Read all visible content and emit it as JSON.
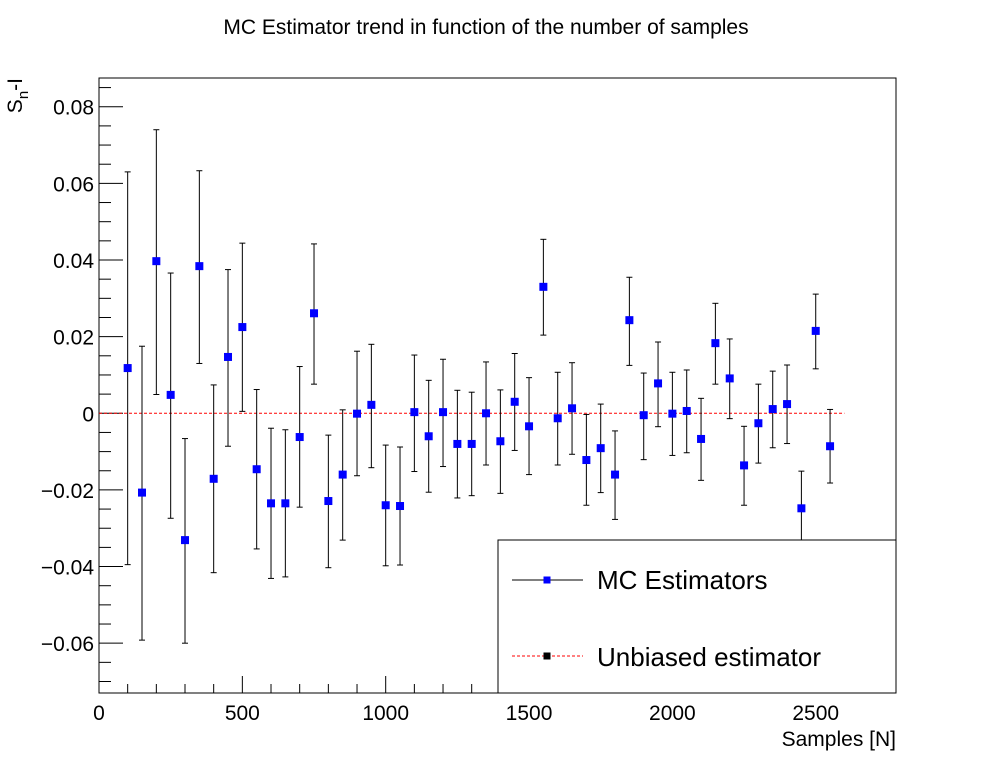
{
  "chart_data": {
    "type": "scatter",
    "title": "MC Estimator trend in function of the number of samples",
    "xlabel": "Samples [N]",
    "ylabel_main": "S",
    "ylabel_sub": "n",
    "ylabel_suffix": "-I",
    "xlim": [
      0,
      2780
    ],
    "ylim": [
      -0.073,
      0.0875
    ],
    "x_ticks": [
      0,
      500,
      1000,
      1500,
      2000,
      2500
    ],
    "x_tick_labels": [
      "0",
      "500",
      "1000",
      "1500",
      "2000",
      "2500"
    ],
    "y_ticks": [
      -0.06,
      -0.04,
      -0.02,
      0,
      0.02,
      0.04,
      0.06,
      0.08
    ],
    "y_tick_labels": [
      "−0.06",
      "−0.04",
      "−0.02",
      "0",
      "0.02",
      "0.04",
      "0.06",
      "0.08"
    ],
    "legend_position": "bottom-right",
    "series": [
      {
        "name": "MC Estimators",
        "color": "#0000ff",
        "x": [
          100,
          150,
          200,
          250,
          300,
          350,
          400,
          450,
          500,
          550,
          600,
          650,
          700,
          750,
          800,
          850,
          900,
          950,
          1000,
          1050,
          1100,
          1150,
          1200,
          1250,
          1300,
          1350,
          1400,
          1450,
          1500,
          1550,
          1600,
          1650,
          1700,
          1750,
          1800,
          1850,
          1900,
          1950,
          2000,
          2050,
          2100,
          2150,
          2200,
          2250,
          2300,
          2350,
          2400,
          2450,
          2500,
          2550
        ],
        "y": [
          0.0118,
          -0.0207,
          0.0397,
          0.0048,
          -0.0331,
          0.0384,
          -0.0171,
          0.0147,
          0.0225,
          -0.0146,
          -0.0235,
          -0.0235,
          -0.0062,
          0.0261,
          -0.0229,
          -0.016,
          -0.0001,
          0.0022,
          -0.024,
          -0.0242,
          0.0003,
          -0.006,
          0.0003,
          -0.008,
          -0.008,
          0.0,
          -0.0073,
          0.003,
          -0.0034,
          0.033,
          -0.0013,
          0.0013,
          -0.0122,
          -0.0091,
          -0.016,
          0.0243,
          -0.0005,
          0.0078,
          -0.0001,
          0.0006,
          -0.0067,
          0.0183,
          0.0091,
          -0.0136,
          -0.0026,
          0.0011,
          0.0024,
          -0.0248,
          0.0215,
          -0.0086
        ],
        "yerr_low": [
          0.0513,
          0.0385,
          0.0348,
          0.0322,
          0.0269,
          0.0254,
          0.0245,
          0.0233,
          0.022,
          0.0208,
          0.0196,
          0.0192,
          0.0183,
          0.0185,
          0.0174,
          0.0171,
          0.0162,
          0.0164,
          0.0158,
          0.0154,
          0.0155,
          0.0146,
          0.0142,
          0.0141,
          0.0135,
          0.0135,
          0.0136,
          0.0127,
          0.0126,
          0.0126,
          0.0122,
          0.012,
          0.0118,
          0.0116,
          0.0117,
          0.0118,
          0.0116,
          0.0113,
          0.0109,
          0.0109,
          0.0108,
          0.0107,
          0.0105,
          0.0104,
          0.0104,
          0.0101,
          0.0103,
          0.0098,
          0.0099,
          0.0096
        ],
        "yerr_high": [
          0.0512,
          0.0382,
          0.0343,
          0.0318,
          0.0265,
          0.0249,
          0.0245,
          0.0228,
          0.0219,
          0.0208,
          0.0196,
          0.0192,
          0.0184,
          0.0181,
          0.0172,
          0.0169,
          0.0163,
          0.0158,
          0.0157,
          0.0154,
          0.0149,
          0.0146,
          0.0138,
          0.014,
          0.0135,
          0.0134,
          0.0134,
          0.0126,
          0.0127,
          0.0124,
          0.012,
          0.0119,
          0.0119,
          0.0115,
          0.0114,
          0.0112,
          0.011,
          0.0108,
          0.0108,
          0.0107,
          0.0106,
          0.0104,
          0.0103,
          0.0102,
          0.0102,
          0.0099,
          0.0102,
          0.0097,
          0.0096,
          0.0096
        ]
      },
      {
        "name": "Unbiased estimator",
        "color": "#ff0000",
        "x": [
          0,
          2600
        ],
        "y": [
          0,
          0
        ]
      }
    ]
  }
}
